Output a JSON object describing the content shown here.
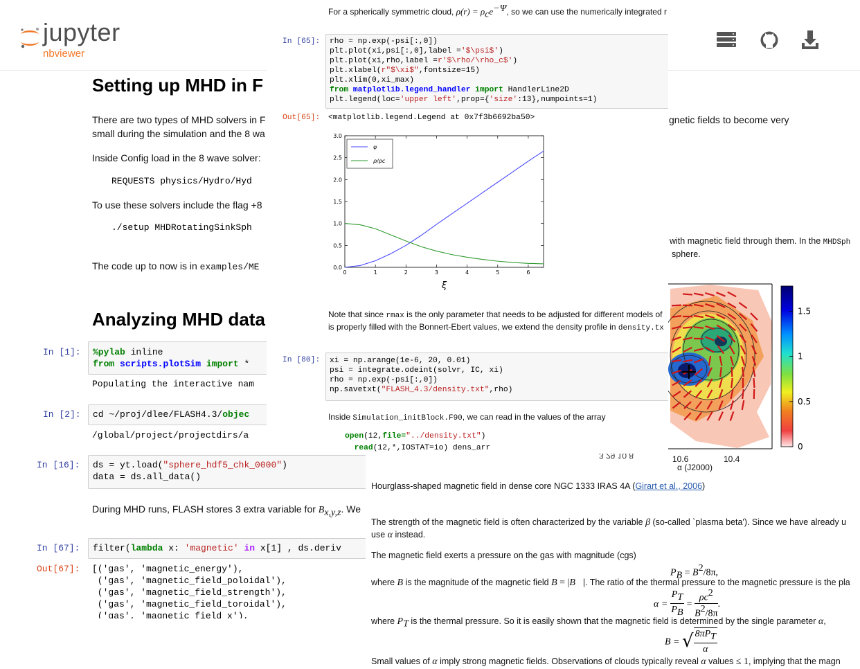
{
  "header": {
    "logo": "jupyter",
    "subtitle": "nbviewer"
  },
  "notebook": {
    "heading_1": "Setting up MHD in F",
    "para_1": [
      "There are two types of MHD solvers in F",
      "small during the simulation and the 8 wa"
    ],
    "para_2": "Inside Config load in the 8 wave solver:",
    "code_1": "REQUESTS physics/Hydro/Hyd",
    "para_3": "To use these solvers include the flag +8",
    "code_2": "./setup MHDRotatingSinkSph",
    "para_4": [
      "The code up to now is in ",
      "examples/ME"
    ],
    "heading_2": "Analyzing MHD data",
    "cells": [
      {
        "prompt": "In [1]:",
        "lines": [
          [
            "%pylab",
            " inline"
          ],
          [
            "from",
            " ",
            "scripts.plotSim",
            " ",
            "import",
            " *"
          ]
        ],
        "output": "Populating the interactive nam"
      },
      {
        "prompt": "In [2]:",
        "lines": [
          [
            "cd ~/proj/dlee/FLASH4.3/",
            "objec"
          ]
        ],
        "output": "/global/project/projectdirs/a"
      },
      {
        "prompt": "In [16]:",
        "lines": [
          [
            "ds = yt.load(",
            "\"sphere_hdf5_chk_0000\"",
            ")"
          ],
          [
            "data = ds.all_data()"
          ]
        ]
      },
      {
        "prompt": "In [67]:",
        "lines": [
          [
            "filter(",
            "lambda",
            " x: ",
            "'magnetic'",
            " ",
            "in",
            " x[1] , ds.deriv"
          ]
        ],
        "out_prompt": "Out[67]:",
        "out_lines": [
          [
            "[('gas', 'magnetic_energy'),"
          ],
          [
            " ('gas', 'magnetic_field_poloidal'),"
          ],
          [
            " ('gas', 'magnetic_field_strength'),"
          ],
          [
            " ('gas', 'magnetic_field_toroidal'),"
          ],
          [
            " ('gas', 'magnetic_field_x'),"
          ]
        ]
      }
    ],
    "para_5": [
      "During MHD runs, FLASH stores 3 extra variable for ",
      "B",
      "x,y,z",
      ". We"
    ],
    "side_text": [
      "gnetic fields to become very",
      "with magnetic field through them. In the ",
      "MHDSph",
      "sphere."
    ]
  },
  "overlay_top": {
    "intro": [
      "For a spherically symmetric cloud, ",
      "ρ(r) = ρ",
      "c",
      "e",
      "−Ψ",
      ", so we can use the numerically integrated r"
    ],
    "cell_65": {
      "prompt": "In [65]:",
      "lines": [
        [
          "rho = np.exp(-psi[:,0])"
        ],
        [
          "plt.plot(xi,psi[:,0],label =",
          "'$\\psi$'",
          ")"
        ],
        [
          "plt.plot(xi,rho,label =",
          "r'$\\rho/\\rho_c$'",
          ")"
        ],
        [
          "plt.xlabel(",
          "r\"$\\xi$\"",
          ",fontsize=15)"
        ],
        [
          "plt.xlim(0,xi_max)"
        ],
        [
          "from",
          " ",
          "matplotlib.legend_handler",
          " ",
          "import",
          " HandlerLine2D"
        ],
        [
          "plt.legend(loc=",
          "'upper left'",
          ",prop={",
          "'size'",
          ":13},numpoints=1)"
        ]
      ],
      "out_prompt": "Out[65]:",
      "output": "<matplotlib.legend.Legend at 0x7f3b6692ba50>"
    },
    "plot": {
      "type": "line",
      "xlabel": "ξ",
      "xlim": [
        0,
        6.5
      ],
      "ylim": [
        0,
        3
      ],
      "xticks": [
        0,
        1,
        2,
        3,
        4,
        5,
        6
      ],
      "yticks": [
        {
          "value": 0,
          "label": "0.0"
        },
        {
          "value": 0.5,
          "label": "0.5"
        },
        {
          "value": 1,
          "label": "1.0"
        },
        {
          "value": 1.5,
          "label": "1.5"
        },
        {
          "value": 2,
          "label": "2.0"
        },
        {
          "value": 2.5,
          "label": "2.5"
        },
        {
          "value": 3,
          "label": "3.0"
        }
      ],
      "x": [
        0,
        0.5,
        1,
        1.5,
        2,
        2.5,
        3,
        3.5,
        4,
        4.5,
        5,
        5.5,
        6,
        6.5
      ],
      "series": [
        {
          "name": "ψ",
          "color": "#4a4aff",
          "values": [
            0,
            0.04,
            0.15,
            0.31,
            0.5,
            0.73,
            0.98,
            1.22,
            1.46,
            1.7,
            1.94,
            2.18,
            2.42,
            2.65
          ]
        },
        {
          "name": "ρ/ρc",
          "color": "#2f9a2f",
          "values": [
            1,
            0.97,
            0.88,
            0.74,
            0.6,
            0.47,
            0.37,
            0.29,
            0.23,
            0.18,
            0.14,
            0.11,
            0.09,
            0.08
          ]
        }
      ],
      "legend": "upper left"
    },
    "note": [
      [
        "Note that since ",
        "rmax",
        " is the only parameter that needs to be adjusted for different models of"
      ],
      [
        "is properly filled with the Bonnert-Ebert values, we extend the density profile in ",
        "density.tx"
      ]
    ],
    "cell_80": {
      "prompt": "In [80]:",
      "lines": [
        [
          "xi = np.arange(1e-6, 20, 0.01)"
        ],
        [
          "psi = integrate.odeint(solvr, IC, xi)"
        ],
        [
          "rho = np.exp(-psi[:,0])"
        ],
        [
          "np.savetxt(",
          "\"FLASH_4.3/density.txt\"",
          ",rho)"
        ]
      ]
    },
    "init_text": [
      "Inside ",
      "Simulation_initBlock.F90",
      ", we can read in the values of the array"
    ],
    "fortran": [
      [
        "open",
        "(12,",
        "file=",
        "\"../density.txt\"",
        ")"
      ],
      [
        "  ",
        "read",
        "(12,*,IOSTAT=io) dens_arr"
      ]
    ]
  },
  "figure": {
    "colorbar_lim": [
      0,
      1.78
    ],
    "colorbar_ticks": [
      1.5,
      1,
      0.5,
      0
    ],
    "x_tick_labels": [
      "10.6",
      "10.4"
    ],
    "x_label": "α (J2000)",
    "dec_label": "3 29 10.8"
  },
  "overlay_bottom": {
    "caption": [
      "Hourglass-shaped magnetic field in dense core NGC 1333 IRAS 4A (",
      "Girart et al., 2006",
      ")"
    ],
    "beta": [
      [
        "The strength of the magnetic field is often characterized by the variable ",
        "β",
        " (so-called `plasma beta'). Since we have already u"
      ],
      [
        "use ",
        "α",
        " instead."
      ]
    ],
    "pressure": "The magnetic field exerts a pressure on the gas with magnitude (cgs)",
    "eq_1": [
      "P",
      "B",
      " = ",
      "B",
      "2",
      "/8π,"
    ],
    "ratio": [
      "where ",
      "B",
      " is the magnitude of the magnetic field ",
      "B",
      " = |",
      "B⃗",
      "|. The ratio of the thermal pressure to the magnetic pressure is the pla"
    ],
    "eq_2": [
      "α = ",
      "P",
      "T",
      "P",
      "B",
      " = ",
      "ρc",
      "2",
      "B",
      "2",
      "/8π",
      "."
    ],
    "thermal": [
      "where ",
      "P",
      "T",
      " is the thermal pressure. So it is easily shown that the magnetic field is determined by the single parameter ",
      "α",
      ","
    ],
    "eq_3": [
      "B = ",
      "8πP",
      "T",
      "α"
    ],
    "small": [
      "Small values of ",
      "α",
      " imply strong magnetic fields. Observations of clouds typically reveal ",
      "α",
      " values ",
      "≤ 1",
      ", implying that the magn"
    ]
  }
}
